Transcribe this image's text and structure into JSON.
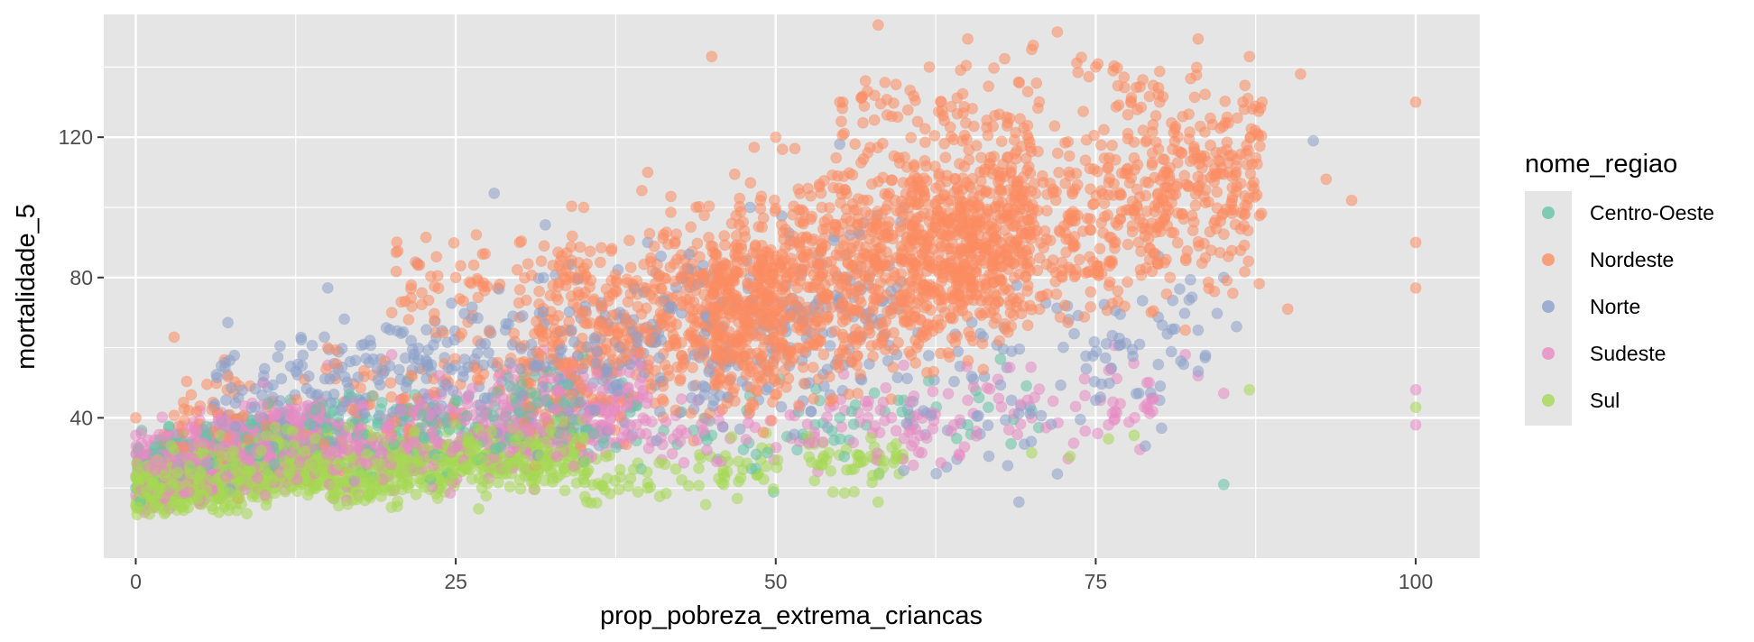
{
  "chart_data": {
    "type": "scatter",
    "title": "",
    "xlabel": "prop_pobreza_extrema_criancas",
    "ylabel": "mortalidade_5",
    "xlim": [
      -2.5,
      105.0
    ],
    "ylim": [
      0,
      155
    ],
    "x_ticks": [
      0,
      25,
      50,
      75,
      100
    ],
    "x_tick_labels": [
      "0",
      "25",
      "50",
      "75",
      "100"
    ],
    "y_ticks": [
      40,
      80,
      120
    ],
    "y_tick_labels": [
      "40",
      "80",
      "120"
    ],
    "grid": true,
    "panel_background": "#e5e5e5",
    "grid_major_color": "#ffffff",
    "point_opacity": 0.55,
    "legend": {
      "title": "nome_regiao",
      "position": "right"
    },
    "series": [
      {
        "name": "Centro-Oeste",
        "color": "#66c2a5",
        "sample_points": [
          [
            0,
            20
          ],
          [
            3,
            25
          ],
          [
            8,
            30
          ],
          [
            12,
            35
          ],
          [
            18,
            40
          ],
          [
            25,
            45
          ],
          [
            30,
            42
          ],
          [
            38,
            50
          ],
          [
            45,
            35
          ],
          [
            55,
            40
          ],
          [
            60,
            45
          ],
          [
            65,
            38
          ],
          [
            70,
            42
          ],
          [
            85,
            21
          ]
        ],
        "density": [
          {
            "x_range": [
              0,
              12
            ],
            "y_range": [
              14,
              45
            ],
            "count": 260
          },
          {
            "x_range": [
              12,
              35
            ],
            "y_range": [
              18,
              58
            ],
            "count": 220
          },
          {
            "x_range": [
              35,
              72
            ],
            "y_range": [
              18,
              60
            ],
            "count": 70
          }
        ]
      },
      {
        "name": "Nordeste",
        "color": "#fc8d62",
        "sample_points": [
          [
            0,
            40
          ],
          [
            3,
            63
          ],
          [
            15,
            60
          ],
          [
            20,
            70
          ],
          [
            25,
            80
          ],
          [
            30,
            90
          ],
          [
            35,
            100
          ],
          [
            40,
            110
          ],
          [
            45,
            143
          ],
          [
            50,
            120
          ],
          [
            55,
            130
          ],
          [
            58,
            152
          ],
          [
            62,
            140
          ],
          [
            65,
            148
          ],
          [
            70,
            145
          ],
          [
            72,
            150
          ],
          [
            75,
            140
          ],
          [
            80,
            130
          ],
          [
            83,
            148
          ],
          [
            87,
            143
          ],
          [
            88,
            130
          ],
          [
            91,
            138
          ],
          [
            93,
            108
          ],
          [
            95,
            102
          ],
          [
            100,
            130
          ],
          [
            100,
            90
          ],
          [
            100,
            77
          ],
          [
            82,
            65
          ],
          [
            90,
            71
          ]
        ],
        "density": [
          {
            "x_range": [
              2,
              30
            ],
            "y_range": [
              16,
              70
            ],
            "count": 140
          },
          {
            "x_range": [
              30,
              50
            ],
            "y_range": [
              25,
              105
            ],
            "count": 520
          },
          {
            "x_range": [
              45,
              70
            ],
            "y_range": [
              35,
              130
            ],
            "count": 1050
          },
          {
            "x_range": [
              60,
              88
            ],
            "y_range": [
              55,
              140
            ],
            "count": 700
          },
          {
            "x_range": [
              20,
              45
            ],
            "y_range": [
              55,
              110
            ],
            "count": 110
          },
          {
            "x_range": [
              55,
              80
            ],
            "y_range": [
              110,
              152
            ],
            "count": 90
          }
        ]
      },
      {
        "name": "Norte",
        "color": "#8da0cb",
        "sample_points": [
          [
            10,
            52
          ],
          [
            15,
            77
          ],
          [
            22,
            84
          ],
          [
            28,
            104
          ],
          [
            32,
            95
          ],
          [
            40,
            90
          ],
          [
            48,
            100
          ],
          [
            55,
            118
          ],
          [
            60,
            100
          ],
          [
            66,
            64
          ],
          [
            72,
            24
          ],
          [
            69,
            16
          ],
          [
            60,
            25
          ],
          [
            75,
            45
          ],
          [
            83,
            65
          ],
          [
            85,
            80
          ],
          [
            86,
            66
          ],
          [
            92,
            119
          ],
          [
            80,
            45
          ]
        ],
        "density": [
          {
            "x_range": [
              5,
              30
            ],
            "y_range": [
              20,
              80
            ],
            "count": 230
          },
          {
            "x_range": [
              30,
              60
            ],
            "y_range": [
              25,
              100
            ],
            "count": 360
          },
          {
            "x_range": [
              60,
              85
            ],
            "y_range": [
              20,
              90
            ],
            "count": 110
          }
        ]
      },
      {
        "name": "Sudeste",
        "color": "#e78ac3",
        "sample_points": [
          [
            0,
            18
          ],
          [
            0,
            35
          ],
          [
            5,
            42
          ],
          [
            10,
            50
          ],
          [
            15,
            55
          ],
          [
            20,
            58
          ],
          [
            30,
            45
          ],
          [
            40,
            55
          ],
          [
            50,
            60
          ],
          [
            60,
            55
          ],
          [
            65,
            45
          ],
          [
            70,
            40
          ],
          [
            76,
            38
          ],
          [
            79,
            50
          ],
          [
            82,
            58
          ],
          [
            83,
            52
          ],
          [
            85,
            47
          ],
          [
            100,
            48
          ],
          [
            100,
            38
          ]
        ],
        "density": [
          {
            "x_range": [
              0,
              15
            ],
            "y_range": [
              13,
              45
            ],
            "count": 800
          },
          {
            "x_range": [
              15,
              40
            ],
            "y_range": [
              15,
              60
            ],
            "count": 450
          },
          {
            "x_range": [
              40,
              80
            ],
            "y_range": [
              18,
              62
            ],
            "count": 160
          }
        ]
      },
      {
        "name": "Sul",
        "color": "#a6d854",
        "sample_points": [
          [
            0,
            15
          ],
          [
            2,
            20
          ],
          [
            5,
            25
          ],
          [
            10,
            30
          ],
          [
            15,
            35
          ],
          [
            20,
            40
          ],
          [
            25,
            38
          ],
          [
            30,
            30
          ],
          [
            35,
            25
          ],
          [
            40,
            20
          ],
          [
            47,
            17
          ],
          [
            58,
            16
          ],
          [
            70,
            30
          ],
          [
            73,
            29
          ],
          [
            76,
            34
          ],
          [
            78,
            35
          ],
          [
            87,
            48
          ],
          [
            100,
            43
          ]
        ],
        "density": [
          {
            "x_range": [
              0,
              15
            ],
            "y_range": [
              11,
              38
            ],
            "count": 1000
          },
          {
            "x_range": [
              15,
              35
            ],
            "y_range": [
              12,
              42
            ],
            "count": 480
          },
          {
            "x_range": [
              35,
              60
            ],
            "y_range": [
              14,
              38
            ],
            "count": 120
          }
        ]
      }
    ]
  }
}
